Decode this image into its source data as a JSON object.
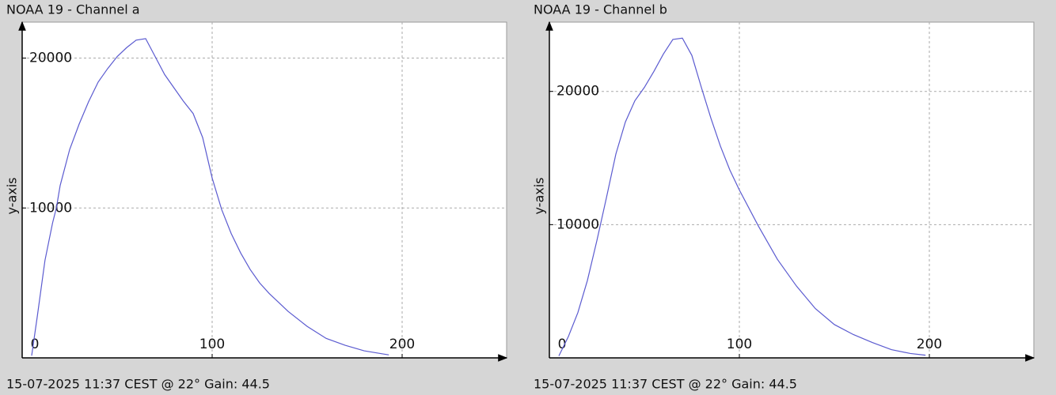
{
  "chart_data": [
    {
      "type": "line",
      "title": "NOAA 19 - Channel a",
      "footer": "15-07-2025 11:37 CEST @ 22° Gain: 44.5",
      "y_label": "y-axis",
      "x": [
        5,
        8,
        12,
        16,
        18,
        20,
        25,
        30,
        35,
        40,
        45,
        50,
        55,
        60,
        65,
        70,
        75,
        80,
        85,
        90,
        95,
        100,
        105,
        110,
        115,
        120,
        125,
        130,
        140,
        150,
        160,
        170,
        180,
        190,
        193
      ],
      "values": [
        150,
        2800,
        6500,
        9000,
        10000,
        11500,
        13900,
        15600,
        17100,
        18400,
        19300,
        20100,
        20700,
        21200,
        21300,
        20100,
        18900,
        18000,
        17100,
        16300,
        14700,
        12000,
        9900,
        8300,
        7000,
        5900,
        5000,
        4300,
        3100,
        2100,
        1300,
        840,
        470,
        260,
        200
      ],
      "color": "#5b5bd0",
      "xlim": [
        0,
        255
      ],
      "xticks": [
        0,
        100,
        200
      ],
      "ylim": [
        0,
        22400
      ],
      "yticks": [
        10000,
        20000
      ],
      "grid": true
    },
    {
      "type": "line",
      "title": "NOAA 19 - Channel b",
      "footer": "15-07-2025 11:37 CEST @ 22° Gain: 44.5",
      "y_label": "y-axis",
      "x": [
        5,
        10,
        15,
        20,
        25,
        30,
        35,
        40,
        45,
        50,
        55,
        60,
        65,
        70,
        75,
        80,
        85,
        90,
        95,
        100,
        110,
        120,
        130,
        140,
        150,
        160,
        170,
        180,
        190,
        198
      ],
      "values": [
        150,
        1600,
        3400,
        5800,
        8800,
        12000,
        15300,
        17700,
        19300,
        20300,
        21500,
        22800,
        23900,
        24000,
        22700,
        20300,
        18000,
        15900,
        14100,
        12600,
        9900,
        7400,
        5400,
        3700,
        2500,
        1750,
        1150,
        620,
        330,
        200
      ],
      "color": "#5b5bd0",
      "xlim": [
        0,
        255
      ],
      "xticks": [
        0,
        100,
        200
      ],
      "ylim": [
        0,
        25200
      ],
      "yticks": [
        10000,
        20000
      ],
      "grid": true
    }
  ]
}
